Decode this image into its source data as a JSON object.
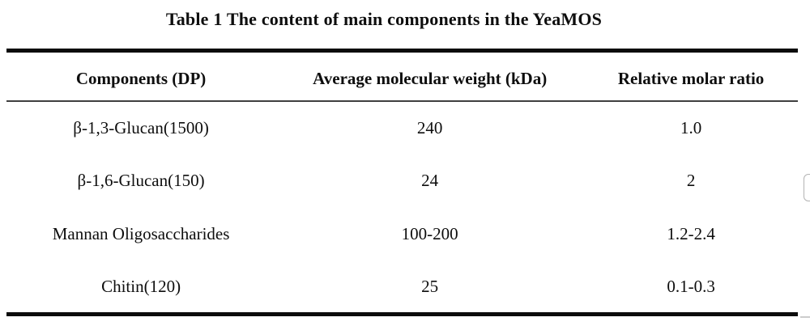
{
  "title": "Table 1 The content of main components in the YeaMOS",
  "table": {
    "columns": [
      "Components (DP)",
      "Average molecular weight (kDa)",
      "Relative molar ratio"
    ],
    "rows": [
      {
        "component": "β-1,3-Glucan(1500)",
        "avg_molecular_weight_kda": "240",
        "relative_molar_ratio": "1.0"
      },
      {
        "component": "β-1,6-Glucan(150)",
        "avg_molecular_weight_kda": "24",
        "relative_molar_ratio": "2"
      },
      {
        "component": "Mannan Oligosaccharides",
        "avg_molecular_weight_kda": "100-200",
        "relative_molar_ratio": "1.2-2.4"
      },
      {
        "component": "Chitin(120)",
        "avg_molecular_weight_kda": "25",
        "relative_molar_ratio": "0.1-0.3"
      }
    ]
  },
  "colors": {
    "heavy_rule": "#0c0c0c",
    "light_rule": "#3f3f3f",
    "text": "#0e0e0e",
    "edge_widget_border": "#b3b3b3"
  },
  "artifacts": {
    "edge_button": "cropped-rounded-button-at-right-edge",
    "edge_sliver": "faint-gray-mark-bottom-right"
  }
}
